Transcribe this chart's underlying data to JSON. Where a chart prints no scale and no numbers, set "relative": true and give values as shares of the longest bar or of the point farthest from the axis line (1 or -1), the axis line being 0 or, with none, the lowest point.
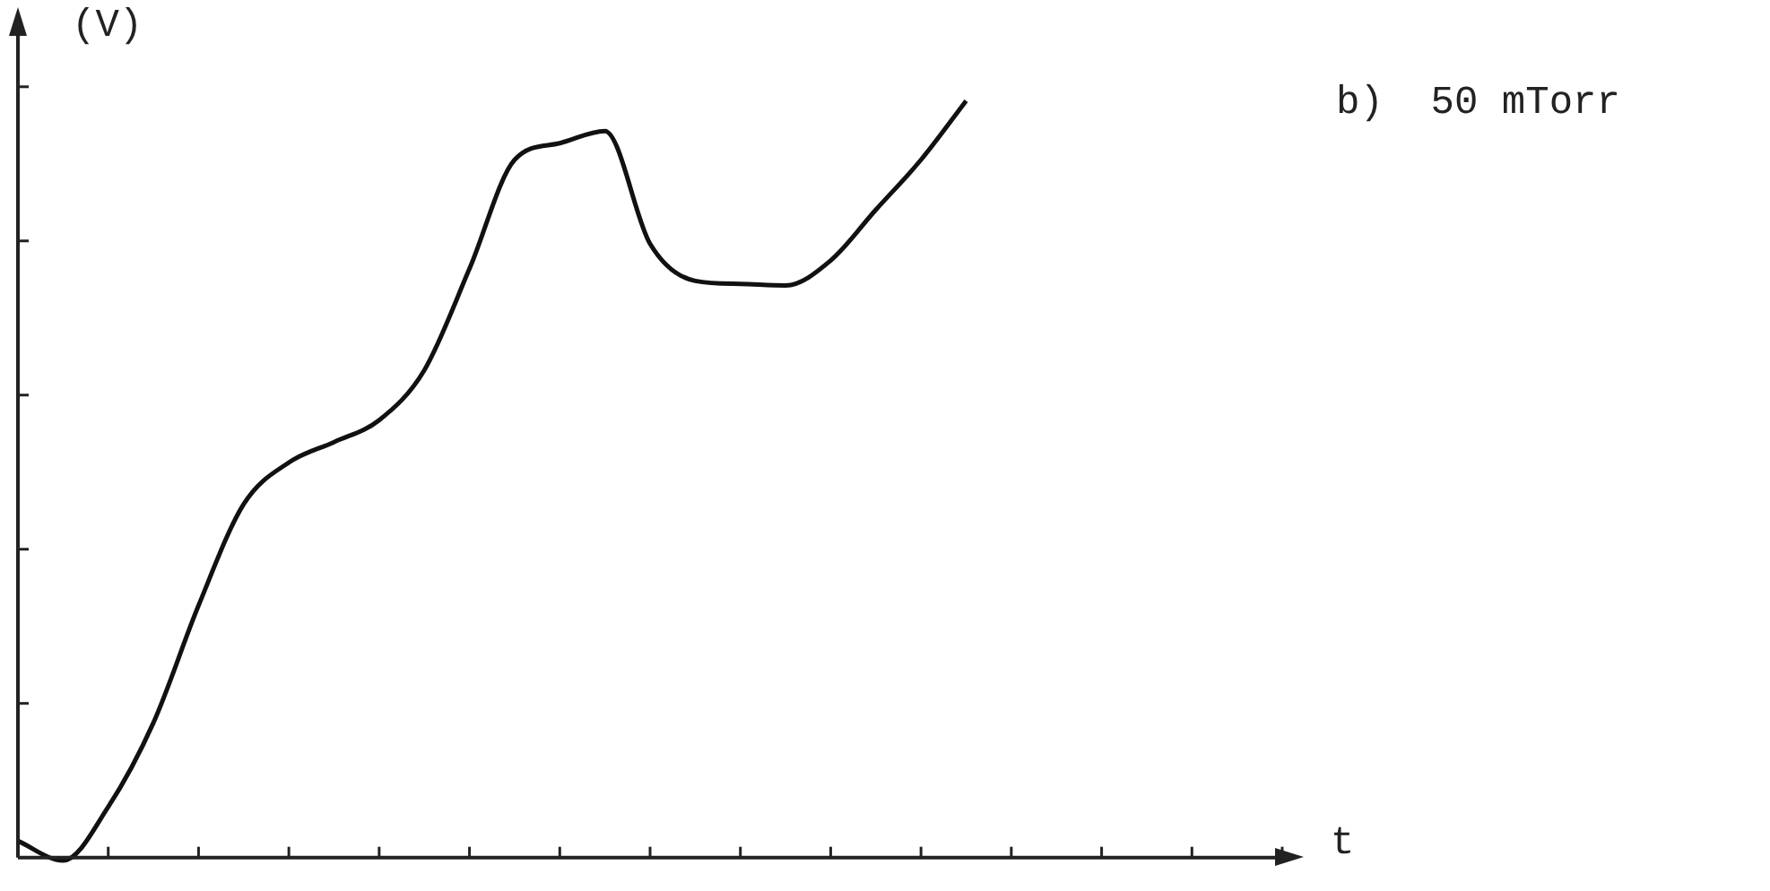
{
  "chart_data": {
    "type": "line",
    "relative": true,
    "ylabel": "(V)",
    "xlabel": "t",
    "annotations": [
      "b)  50 mTorr"
    ],
    "categories": [
      null,
      null,
      null,
      null,
      null,
      null,
      null,
      null,
      null,
      null,
      null,
      null,
      null,
      null,
      null,
      null,
      null,
      null,
      null,
      null,
      null,
      null,
      null,
      null,
      null,
      null,
      null,
      null,
      null
    ],
    "series": [
      {
        "color": "#111111",
        "values": [
          0.022,
          -0.004,
          0.067,
          0.178,
          0.333,
          0.467,
          0.522,
          0.549,
          0.578,
          0.644,
          0.778,
          0.922,
          0.944,
          0.96,
          0.811,
          0.762,
          0.758,
          0.756,
          0.789,
          0.856,
          0.922,
          1.0,
          null,
          null,
          null,
          null,
          null,
          null,
          null
        ]
      }
    ],
    "grid": false,
    "legend": false,
    "marker": "none",
    "line_style": "solid"
  }
}
